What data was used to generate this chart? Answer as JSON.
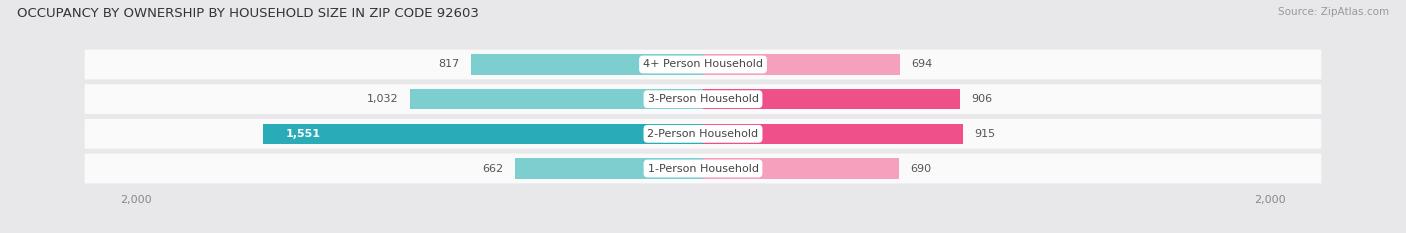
{
  "title": "OCCUPANCY BY OWNERSHIP BY HOUSEHOLD SIZE IN ZIP CODE 92603",
  "source": "Source: ZipAtlas.com",
  "categories": [
    "1-Person Household",
    "2-Person Household",
    "3-Person Household",
    "4+ Person Household"
  ],
  "owner_values": [
    662,
    1551,
    1032,
    817
  ],
  "renter_values": [
    690,
    915,
    906,
    694
  ],
  "owner_color_strong": "#2AACB8",
  "owner_color_light": "#7DCFCF",
  "renter_color_strong": "#F0508A",
  "renter_color_light": "#F5A0BC",
  "xlim": 2000,
  "bg_color": "#E8E8EB",
  "title_fontsize": 9.5,
  "source_fontsize": 7.5,
  "bar_height": 0.58,
  "row_bg_color": "#F0F0F4"
}
